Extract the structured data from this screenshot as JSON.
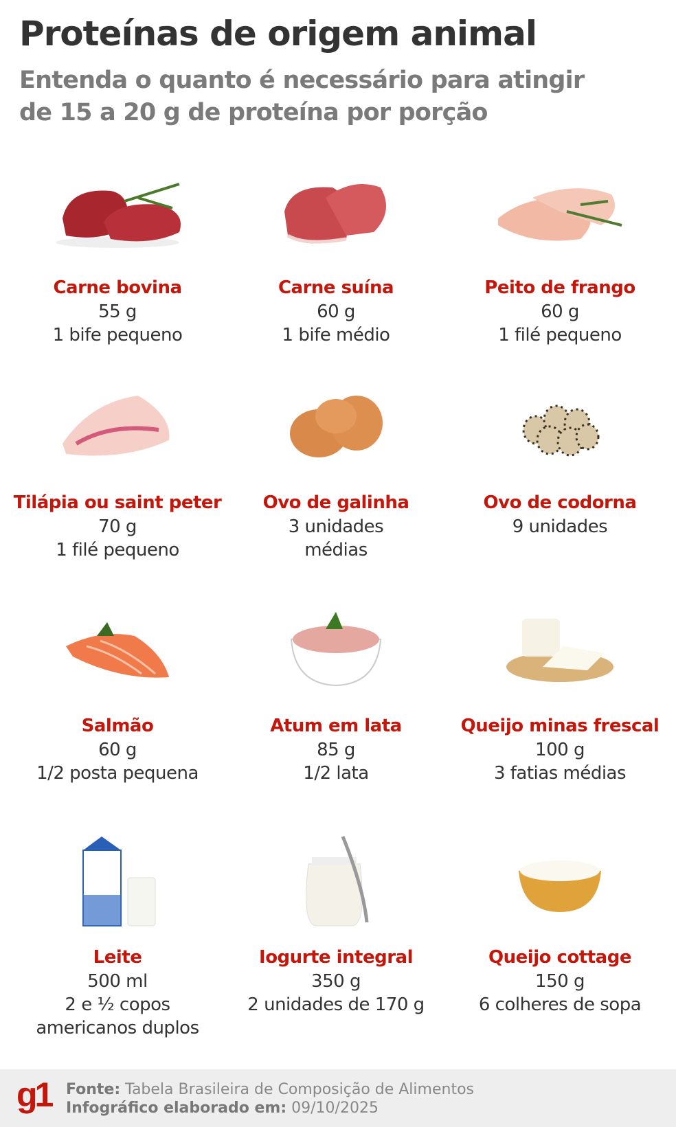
{
  "header": {
    "title": "Proteínas de origem animal",
    "subtitle_line1": "Entenda o quanto é necessário para atingir",
    "subtitle_line2": "de 15 a 20 g de proteína por porção"
  },
  "colors": {
    "accent": "#c4170c",
    "title": "#333333",
    "subtitle": "#7a7a7a",
    "footer_bg": "#eeeeee"
  },
  "items": [
    {
      "name": "Carne bovina",
      "lines": [
        "55 g",
        "1 bife pequeno"
      ],
      "icon": "beef-image"
    },
    {
      "name": "Carne suína",
      "lines": [
        "60 g",
        "1 bife médio"
      ],
      "icon": "pork-image"
    },
    {
      "name": "Peito de frango",
      "lines": [
        "60 g",
        "1 filé pequeno"
      ],
      "icon": "chicken-breast-image"
    },
    {
      "name": "Tilápia ou saint peter",
      "lines": [
        "70 g",
        "1 filé pequeno"
      ],
      "icon": "tilapia-image"
    },
    {
      "name": "Ovo de galinha",
      "lines": [
        "3 unidades",
        "médias"
      ],
      "icon": "chicken-eggs-image"
    },
    {
      "name": "Ovo de codorna",
      "lines": [
        "9 unidades"
      ],
      "icon": "quail-eggs-image"
    },
    {
      "name": "Salmão",
      "lines": [
        "60 g",
        "1/2 posta pequena"
      ],
      "icon": "salmon-image"
    },
    {
      "name": "Atum em lata",
      "lines": [
        "85 g",
        "1/2 lata"
      ],
      "icon": "tuna-bowl-image"
    },
    {
      "name": "Queijo minas frescal",
      "lines": [
        "100 g",
        "3 fatias médias"
      ],
      "icon": "cheese-image"
    },
    {
      "name": "Leite",
      "lines": [
        "500 ml",
        "2 e ½ copos",
        "americanos duplos"
      ],
      "icon": "milk-image"
    },
    {
      "name": "Iogurte integral",
      "lines": [
        "350 g",
        "2 unidades de 170 g"
      ],
      "icon": "yogurt-image"
    },
    {
      "name": "Queijo cottage",
      "lines": [
        "150 g",
        "6 colheres de sopa"
      ],
      "icon": "cottage-cheese-image"
    }
  ],
  "footer": {
    "logo": "g1",
    "source_label": "Fonte:",
    "source_value": "Tabela Brasileira de Composição de Alimentos",
    "date_label": "Infográfico elaborado em:",
    "date_value": "09/10/2025"
  }
}
